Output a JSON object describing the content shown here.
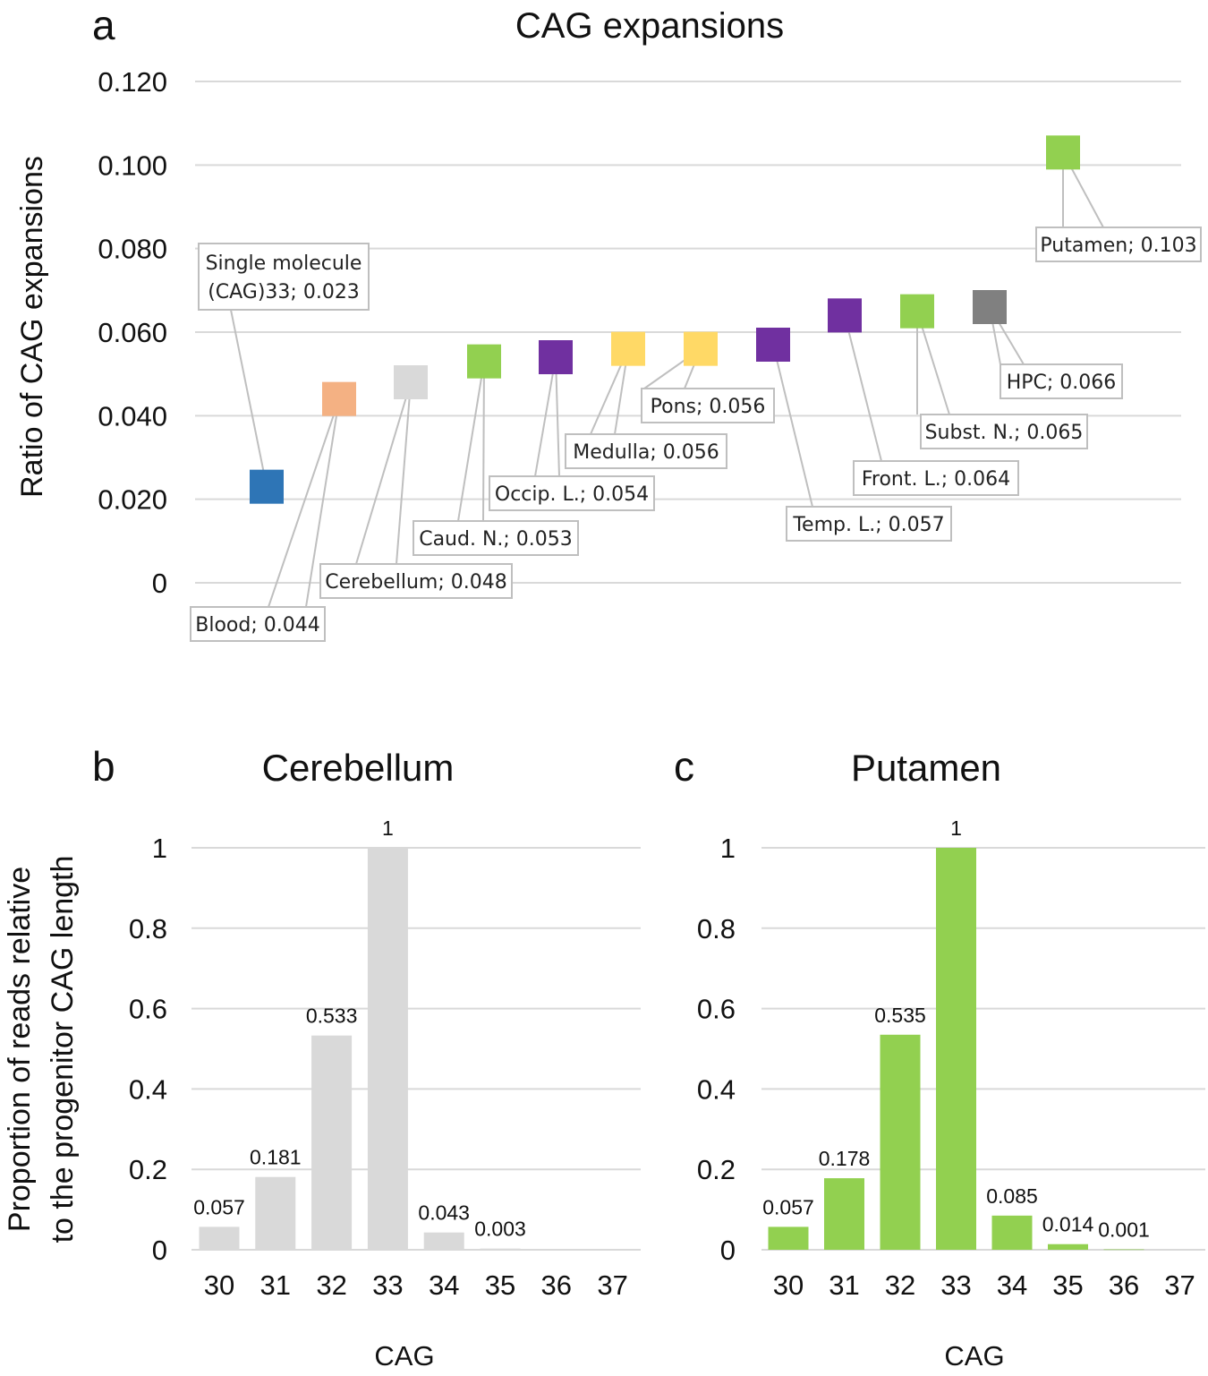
{
  "panels": {
    "a": {
      "letter": "a"
    },
    "b": {
      "letter": "b"
    },
    "c": {
      "letter": "c"
    }
  },
  "chart_data": [
    {
      "id": "a",
      "type": "scatter",
      "title": "CAG expansions",
      "xlabel": "",
      "ylabel": "Ratio of CAG expansions",
      "ylim": [
        0,
        0.12
      ],
      "yticks": [
        0,
        0.02,
        0.04,
        0.06,
        0.08,
        0.1,
        0.12
      ],
      "ytick_labels": [
        "0",
        "0.020",
        "0.040",
        "0.060",
        "0.080",
        "0.100",
        "0.120"
      ],
      "grid": true,
      "points": [
        {
          "name": "Single molecule (CAG)33",
          "value": 0.023,
          "label_lines": [
            "Single molecule",
            "(CAG)33; 0.023"
          ],
          "color": "#2e75b6"
        },
        {
          "name": "Blood",
          "value": 0.044,
          "label_lines": [
            "Blood; 0.044"
          ],
          "color": "#f4b183"
        },
        {
          "name": "Cerebellum",
          "value": 0.048,
          "label_lines": [
            "Cerebellum; 0.048"
          ],
          "color": "#d9d9d9"
        },
        {
          "name": "Caud. N.",
          "value": 0.053,
          "label_lines": [
            "Caud. N.; 0.053"
          ],
          "color": "#92d050"
        },
        {
          "name": "Occip. L.",
          "value": 0.054,
          "label_lines": [
            "Occip. L.; 0.054"
          ],
          "color": "#7030a0"
        },
        {
          "name": "Medulla",
          "value": 0.056,
          "label_lines": [
            "Medulla; 0.056"
          ],
          "color": "#ffd966"
        },
        {
          "name": "Pons",
          "value": 0.056,
          "label_lines": [
            "Pons; 0.056"
          ],
          "color": "#ffd966"
        },
        {
          "name": "Temp. L.",
          "value": 0.057,
          "label_lines": [
            "Temp. L.; 0.057"
          ],
          "color": "#7030a0"
        },
        {
          "name": "Front. L.",
          "value": 0.064,
          "label_lines": [
            "Front. L.; 0.064"
          ],
          "color": "#7030a0"
        },
        {
          "name": "Subst. N.",
          "value": 0.065,
          "label_lines": [
            "Subst. N.; 0.065"
          ],
          "color": "#92d050"
        },
        {
          "name": "HPC",
          "value": 0.066,
          "label_lines": [
            "HPC; 0.066"
          ],
          "color": "#808080"
        },
        {
          "name": "Putamen",
          "value": 0.103,
          "label_lines": [
            "Putamen; 0.103"
          ],
          "color": "#92d050"
        }
      ]
    },
    {
      "id": "b",
      "type": "bar",
      "title": "Cerebellum",
      "xlabel": "CAG",
      "ylabel": "Proportion of reads relative to the progenitor CAG length",
      "ylabel_lines": [
        "Proportion of reads relative",
        "to the progenitor CAG length"
      ],
      "ylim": [
        0,
        1
      ],
      "yticks": [
        0,
        0.2,
        0.4,
        0.6,
        0.8,
        1
      ],
      "ytick_labels": [
        "0",
        "0.2",
        "0.4",
        "0.6",
        "0.8",
        "1"
      ],
      "grid": true,
      "color": "#d9d9d9",
      "categories": [
        "30",
        "31",
        "32",
        "33",
        "34",
        "35",
        "36",
        "37"
      ],
      "values": [
        0.057,
        0.181,
        0.533,
        1,
        0.043,
        0.003,
        null,
        null
      ],
      "data_labels": [
        "0.057",
        "0.181",
        "0.533",
        "1",
        "0.043",
        "0.003",
        "",
        ""
      ]
    },
    {
      "id": "c",
      "type": "bar",
      "title": "Putamen",
      "xlabel": "CAG",
      "ylabel": "",
      "ylim": [
        0,
        1
      ],
      "yticks": [
        0,
        0.2,
        0.4,
        0.6,
        0.8,
        1
      ],
      "ytick_labels": [
        "0",
        "0.2",
        "0.4",
        "0.6",
        "0.8",
        "1"
      ],
      "grid": true,
      "color": "#92d050",
      "categories": [
        "30",
        "31",
        "32",
        "33",
        "34",
        "35",
        "36",
        "37"
      ],
      "values": [
        0.057,
        0.178,
        0.535,
        1,
        0.085,
        0.014,
        0.001,
        null
      ],
      "data_labels": [
        "0.057",
        "0.178",
        "0.535",
        "1",
        "0.085",
        "0.014",
        "0.001",
        ""
      ]
    }
  ]
}
